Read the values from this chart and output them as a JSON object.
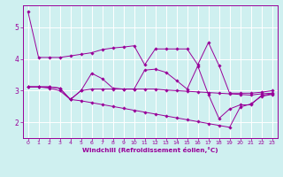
{
  "xlabel": "Windchill (Refroidissement éolien,°C)",
  "background_color": "#cff0f0",
  "line_color": "#990099",
  "grid_color": "#ffffff",
  "xlim": [
    -0.5,
    23.5
  ],
  "ylim": [
    1.5,
    5.7
  ],
  "yticks": [
    2,
    3,
    4,
    5
  ],
  "xticks": [
    0,
    1,
    2,
    3,
    4,
    5,
    6,
    7,
    8,
    9,
    10,
    11,
    12,
    13,
    14,
    15,
    16,
    17,
    18,
    19,
    20,
    21,
    22,
    23
  ],
  "series": {
    "line1": {
      "x": [
        0,
        1,
        2,
        3,
        4,
        5,
        6,
        7,
        8,
        9,
        10,
        11,
        12,
        13,
        14,
        15,
        16,
        17,
        18,
        19,
        20,
        21,
        22,
        23
      ],
      "y": [
        5.5,
        4.05,
        4.05,
        4.05,
        4.1,
        4.15,
        4.2,
        4.3,
        4.35,
        4.38,
        4.42,
        3.82,
        4.32,
        4.32,
        4.32,
        4.32,
        3.82,
        4.52,
        3.8,
        2.92,
        2.92,
        2.92,
        2.95,
        3.0
      ]
    },
    "line2": {
      "x": [
        0,
        1,
        2,
        3,
        4,
        5,
        6,
        7,
        8,
        9,
        10,
        11,
        12,
        13,
        14,
        15,
        16,
        17,
        18,
        19,
        20,
        21,
        22,
        23
      ],
      "y": [
        3.12,
        3.12,
        3.12,
        3.08,
        2.72,
        3.0,
        3.55,
        3.38,
        3.08,
        3.05,
        3.05,
        3.65,
        3.68,
        3.58,
        3.32,
        3.05,
        3.78,
        2.88,
        2.12,
        2.42,
        2.55,
        2.55,
        2.85,
        2.9
      ]
    },
    "line3": {
      "x": [
        0,
        1,
        2,
        3,
        4,
        5,
        6,
        7,
        8,
        9,
        10,
        11,
        12,
        13,
        14,
        15,
        16,
        17,
        18,
        19,
        20,
        21,
        22,
        23
      ],
      "y": [
        3.12,
        3.12,
        3.12,
        3.08,
        2.72,
        3.0,
        3.05,
        3.05,
        3.05,
        3.05,
        3.05,
        3.05,
        3.05,
        3.02,
        3.0,
        2.98,
        2.96,
        2.94,
        2.92,
        2.9,
        2.88,
        2.86,
        2.9,
        2.92
      ]
    },
    "line4": {
      "x": [
        0,
        1,
        2,
        3,
        4,
        5,
        6,
        7,
        8,
        9,
        10,
        11,
        12,
        13,
        14,
        15,
        16,
        17,
        18,
        19,
        20,
        21,
        22,
        23
      ],
      "y": [
        3.12,
        3.12,
        3.08,
        3.0,
        2.72,
        2.68,
        2.62,
        2.56,
        2.5,
        2.44,
        2.38,
        2.32,
        2.26,
        2.2,
        2.14,
        2.08,
        2.02,
        1.96,
        1.9,
        1.84,
        2.48,
        2.58,
        2.82,
        2.88
      ]
    }
  }
}
